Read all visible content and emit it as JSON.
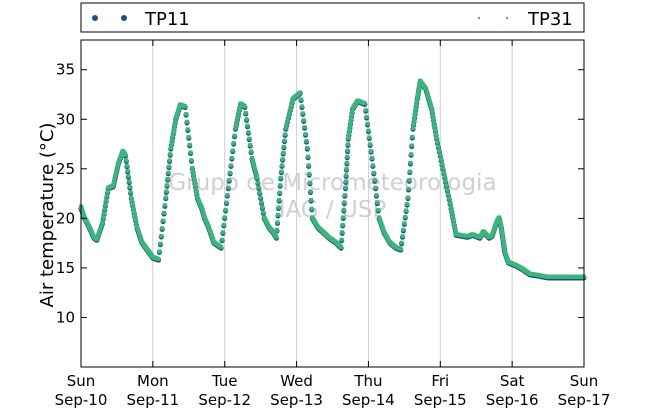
{
  "chart_data": {
    "type": "scatter",
    "title": "",
    "xlabel": "",
    "ylabel": "Air temperature (°C)",
    "ylim": [
      5,
      38
    ],
    "yticks": [
      10,
      15,
      20,
      25,
      30,
      35
    ],
    "xlim": [
      0,
      7
    ],
    "xticks": [
      {
        "x": 0,
        "day": "Sun",
        "date": "Sep-10"
      },
      {
        "x": 1,
        "day": "Mon",
        "date": "Sep-11"
      },
      {
        "x": 2,
        "day": "Tue",
        "date": "Sep-12"
      },
      {
        "x": 3,
        "day": "Wed",
        "date": "Sep-13"
      },
      {
        "x": 4,
        "day": "Thu",
        "date": "Sep-14"
      },
      {
        "x": 5,
        "day": "Fri",
        "date": "Sep-15"
      },
      {
        "x": 6,
        "day": "Sat",
        "date": "Sep-16"
      },
      {
        "x": 7,
        "day": "Sun",
        "date": "Sep-17"
      }
    ],
    "grid": "vertical",
    "legend_position": "top",
    "watermark": [
      "Grupo de Micrometeorologia",
      "IAG / USP"
    ],
    "series": [
      {
        "name": "TP11",
        "color": "#1f4e8c",
        "marker": "circle",
        "x": [
          0,
          0.05,
          0.12,
          0.18,
          0.22,
          0.3,
          0.38,
          0.45,
          0.52,
          0.58,
          0.62,
          0.7,
          0.78,
          0.85,
          0.9,
          0.95,
          1.0,
          1.08,
          1.18,
          1.25,
          1.32,
          1.38,
          1.45,
          1.55,
          1.62,
          1.68,
          1.72,
          1.78,
          1.85,
          1.95,
          2.05,
          2.15,
          2.22,
          2.28,
          2.38,
          2.45,
          2.55,
          2.62,
          2.68,
          2.72,
          2.78,
          2.85,
          2.95,
          3.05,
          3.15,
          3.22,
          3.3,
          3.38,
          3.45,
          3.55,
          3.62,
          3.68,
          3.72,
          3.78,
          3.85,
          3.95,
          4.05,
          4.15,
          4.22,
          4.3,
          4.38,
          4.45,
          4.55,
          4.62,
          4.68,
          4.72,
          4.8,
          4.88,
          4.95,
          5.05,
          5.15,
          5.22,
          5.3,
          5.38,
          5.45,
          5.55,
          5.6,
          5.68,
          5.72,
          5.78,
          5.82,
          5.85,
          5.88,
          5.9,
          5.95,
          6.05,
          6.15,
          6.25,
          6.35,
          6.42,
          6.5,
          6.58,
          6.62,
          6.68,
          6.72,
          6.8,
          6.88,
          6.95,
          7.0
        ],
        "y": [
          21,
          20,
          19,
          18,
          17.8,
          19.5,
          23,
          23.2,
          25.5,
          26.7,
          26.3,
          22,
          19,
          17.5,
          17,
          16.5,
          16,
          15.8,
          22,
          27,
          30,
          31.4,
          31.2,
          25,
          22,
          21,
          20,
          19,
          17.5,
          17,
          23,
          29,
          31.5,
          31.2,
          26,
          24,
          20,
          19,
          18.5,
          18,
          24,
          29,
          32,
          32.6,
          27,
          20,
          19,
          18.5,
          18,
          17.5,
          17,
          23,
          28,
          31,
          31.8,
          31.5,
          26,
          20,
          18.5,
          17.5,
          17,
          16.8,
          22,
          29,
          32,
          33.8,
          33,
          31,
          28,
          24.5,
          21,
          18.3,
          18.2,
          18.1,
          18.3,
          18,
          18.6,
          18,
          18.2,
          19.5,
          20,
          19,
          17.5,
          16.5,
          15.5,
          15.2,
          14.8,
          14.3,
          14.2,
          14.1,
          14,
          14,
          14,
          14,
          14,
          14,
          14,
          14,
          14
        ]
      },
      {
        "name": "TP31",
        "color": "#3db57a",
        "marker": "square",
        "x": [
          0,
          0.05,
          0.12,
          0.18,
          0.22,
          0.3,
          0.38,
          0.45,
          0.52,
          0.58,
          0.62,
          0.7,
          0.78,
          0.85,
          0.9,
          0.95,
          1.0,
          1.08,
          1.18,
          1.25,
          1.32,
          1.38,
          1.45,
          1.55,
          1.62,
          1.68,
          1.72,
          1.78,
          1.85,
          1.95,
          2.05,
          2.15,
          2.22,
          2.28,
          2.38,
          2.45,
          2.55,
          2.62,
          2.68,
          2.72,
          2.78,
          2.85,
          2.95,
          3.05,
          3.15,
          3.22,
          3.3,
          3.38,
          3.45,
          3.55,
          3.62,
          3.68,
          3.72,
          3.78,
          3.85,
          3.95,
          4.05,
          4.15,
          4.22,
          4.3,
          4.38,
          4.45,
          4.55,
          4.62,
          4.68,
          4.72,
          4.8,
          4.88,
          4.95,
          5.05,
          5.15,
          5.22,
          5.3,
          5.38,
          5.45,
          5.55,
          5.6,
          5.68,
          5.72,
          5.78,
          5.82,
          5.85,
          5.88,
          5.9,
          5.95,
          6.05,
          6.15,
          6.25,
          6.35,
          6.42,
          6.5,
          6.58,
          6.62,
          6.68,
          6.72,
          6.8,
          6.88,
          6.95,
          7.0
        ],
        "y": [
          21.2,
          20.1,
          19.1,
          18.1,
          17.9,
          19.6,
          23.1,
          23.3,
          25.6,
          26.8,
          26.4,
          22.1,
          19.1,
          17.6,
          17.1,
          16.6,
          16.1,
          15.9,
          22.1,
          27.1,
          30.1,
          31.5,
          31.3,
          25.1,
          22.1,
          21.1,
          20.1,
          19.1,
          17.6,
          17.1,
          23.1,
          29.1,
          31.6,
          31.3,
          26.1,
          24.1,
          20.1,
          19.1,
          18.6,
          18.1,
          24.1,
          29.1,
          32.1,
          32.7,
          27.1,
          20.1,
          19.1,
          18.6,
          18.1,
          17.6,
          17.1,
          23.1,
          28.1,
          31.1,
          31.9,
          31.6,
          26.1,
          20.1,
          18.6,
          17.6,
          17.1,
          16.9,
          22.1,
          29.1,
          32.1,
          33.9,
          33.1,
          31.1,
          28.1,
          24.6,
          21.1,
          18.4,
          18.3,
          18.2,
          18.4,
          18.1,
          18.7,
          18.1,
          18.3,
          19.6,
          20.1,
          19.1,
          17.6,
          16.6,
          15.6,
          15.3,
          14.9,
          14.4,
          14.3,
          14.2,
          14.1,
          14.1,
          14.1,
          14.1,
          14.1,
          14.1,
          14.1,
          14.1,
          14.1
        ]
      }
    ]
  }
}
